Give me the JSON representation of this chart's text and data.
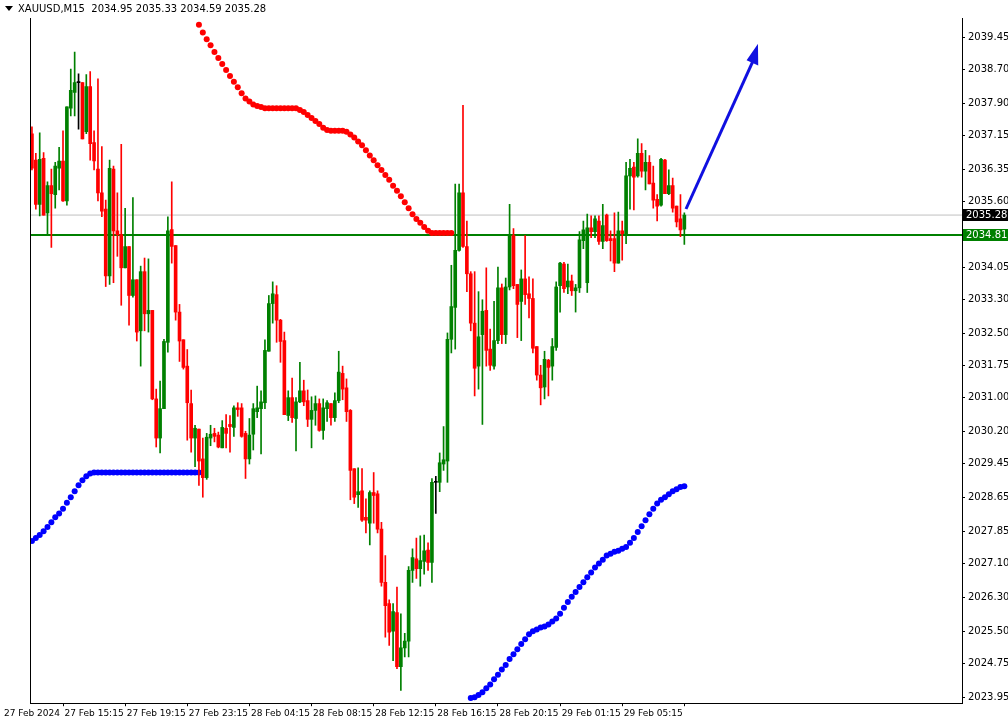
{
  "chart_data": {
    "type": "candlestick",
    "title": "XAUUSD,M15  2034.95 2035.33 2034.59 2035.28",
    "categories": [
      "27 Feb 2024",
      null,
      null,
      null,
      null,
      null,
      null,
      null,
      null,
      null,
      null,
      null,
      null,
      null,
      null,
      null,
      "27 Feb 15:15",
      null,
      null,
      null,
      null,
      null,
      null,
      null,
      null,
      null,
      null,
      null,
      null,
      null,
      null,
      null,
      "27 Feb 19:15",
      null,
      null,
      null,
      null,
      null,
      null,
      null,
      null,
      null,
      null,
      null,
      null,
      null,
      null,
      null,
      "27 Feb 23:15",
      null,
      null,
      null,
      null,
      null,
      null,
      null,
      null,
      null,
      null,
      null,
      null,
      null,
      null,
      null,
      "28 Feb 04:15",
      null,
      null,
      null,
      null,
      null,
      null,
      null,
      null,
      null,
      null,
      null,
      null,
      null,
      null,
      null,
      "28 Feb 08:15",
      null,
      null,
      null,
      null,
      null,
      null,
      null,
      null,
      null,
      null,
      null,
      null,
      null,
      null,
      null,
      "28 Feb 12:15",
      null,
      null,
      null,
      null,
      null,
      null,
      null,
      null,
      null,
      null,
      null,
      null,
      null,
      null,
      null,
      "28 Feb 16:15",
      null,
      null,
      null,
      null,
      null,
      null,
      null,
      null,
      null,
      null,
      null,
      null,
      null,
      null,
      null,
      "28 Feb 20:15",
      null,
      null,
      null,
      null,
      null,
      null,
      null,
      null,
      null,
      null,
      null,
      null,
      null,
      null,
      null,
      "29 Feb 01:15",
      null,
      null,
      null,
      null,
      null,
      null,
      null,
      null,
      null,
      null,
      null,
      null,
      null,
      null,
      null,
      "29 Feb 05:15",
      null,
      null,
      null,
      null,
      null,
      null,
      null,
      null,
      null,
      null,
      null,
      null,
      null,
      null,
      null,
      null,
      null,
      null,
      null,
      null,
      null,
      null,
      null,
      null,
      null,
      null,
      null,
      null,
      null,
      null,
      null,
      null,
      null,
      null,
      null,
      null,
      null,
      null,
      null,
      null,
      null,
      null,
      null,
      null,
      null,
      null,
      null,
      null,
      null,
      null,
      null,
      null,
      null,
      null,
      null,
      null,
      null,
      null,
      null,
      null,
      null,
      null,
      null,
      null,
      null,
      null,
      null,
      null,
      null,
      null,
      null,
      null,
      null,
      null,
      null,
      null,
      null,
      null,
      null
    ],
    "ohlc": [
      [
        2037.19,
        2037.35,
        2036.34,
        2036.38
      ],
      [
        2036.57,
        2036.73,
        2035.42,
        2035.53
      ],
      [
        2035.53,
        2037.21,
        2035.26,
        2036.59
      ],
      [
        2036.61,
        2036.75,
        2035.28,
        2035.28
      ],
      [
        2035.33,
        2036.06,
        2034.8,
        2035.97
      ],
      [
        2035.97,
        2036.36,
        2034.52,
        2035.78
      ],
      [
        2035.76,
        2036.52,
        2035.44,
        2036.43
      ],
      [
        2036.38,
        2036.87,
        2035.87,
        2036.55
      ],
      [
        2036.55,
        2037.26,
        2035.6,
        2035.61
      ],
      [
        2035.61,
        2037.82,
        2035.51,
        2037.82
      ],
      [
        2037.79,
        2038.71,
        2037.61,
        2038.21
      ],
      [
        2038.16,
        2039.11,
        2037.61,
        2038.39
      ],
      [
        2038.39,
        2038.6,
        2037.3,
        2038.39
      ],
      [
        2038.39,
        2038.39,
        2037.07,
        2037.07
      ],
      [
        2037.24,
        2038.58,
        2037.19,
        2038.3
      ],
      [
        2038.3,
        2038.65,
        2036.57,
        2036.96
      ],
      [
        2036.98,
        2037.26,
        2036.34,
        2036.55
      ],
      [
        2036.36,
        2038.48,
        2035.61,
        2035.8
      ],
      [
        2035.8,
        2036.89,
        2035.24,
        2035.37
      ],
      [
        2035.42,
        2035.63,
        2033.6,
        2033.85
      ],
      [
        2033.85,
        2036.57,
        2033.65,
        2036.38
      ],
      [
        2036.36,
        2036.43,
        2033.69,
        2034.91
      ],
      [
        2034.91,
        2035.8,
        2034.31,
        2034.82
      ],
      [
        2034.82,
        2036.94,
        2033.16,
        2034.04
      ],
      [
        2034.04,
        2035.44,
        2034.04,
        2034.54
      ],
      [
        2034.54,
        2034.54,
        2032.69,
        2033.39
      ],
      [
        2033.39,
        2035.69,
        2033.35,
        2033.76
      ],
      [
        2033.76,
        2033.76,
        2032.32,
        2032.53
      ],
      [
        2032.56,
        2034.08,
        2031.73,
        2033.95
      ],
      [
        2033.95,
        2034.27,
        2032.56,
        2032.96
      ],
      [
        2032.96,
        2034.25,
        2032.53,
        2033.04
      ],
      [
        2033.04,
        2033.04,
        2030.94,
        2030.96
      ],
      [
        2030.96,
        2031.19,
        2029.83,
        2030.04
      ],
      [
        2030.04,
        2031.38,
        2029.69,
        2030.73
      ],
      [
        2030.73,
        2032.36,
        2030.73,
        2032.31
      ],
      [
        2032.29,
        2035.24,
        2032.06,
        2034.91
      ],
      [
        2034.94,
        2036.06,
        2034.15,
        2034.54
      ],
      [
        2034.56,
        2034.56,
        2032.81,
        2033.0
      ],
      [
        2033.0,
        2033.18,
        2031.84,
        2032.32
      ],
      [
        2032.35,
        2032.35,
        2031.66,
        2031.7
      ],
      [
        2031.73,
        2032.12,
        2029.99,
        2030.87
      ],
      [
        2030.85,
        2031.17,
        2029.71,
        2030.04
      ],
      [
        2030.04,
        2030.34,
        2029.37,
        2030.27
      ],
      [
        2030.25,
        2030.25,
        2028.93,
        2029.5
      ],
      [
        2029.55,
        2030.04,
        2028.65,
        2029.11
      ],
      [
        2029.11,
        2030.15,
        2029.07,
        2030.06
      ],
      [
        2030.04,
        2030.34,
        2029.86,
        2030.13
      ],
      [
        2030.15,
        2030.27,
        2029.95,
        2030.08
      ],
      [
        2030.11,
        2030.18,
        2029.81,
        2029.83
      ],
      [
        2029.81,
        2030.45,
        2029.81,
        2030.29
      ],
      [
        2030.27,
        2030.59,
        2029.81,
        2030.15
      ],
      [
        2030.36,
        2030.57,
        2029.71,
        2030.31
      ],
      [
        2030.29,
        2030.8,
        2030.08,
        2030.75
      ],
      [
        2030.75,
        2030.87,
        2030.55,
        2030.71
      ],
      [
        2030.75,
        2030.85,
        2030.06,
        2030.08
      ],
      [
        2030.15,
        2030.2,
        2029.09,
        2029.55
      ],
      [
        2029.55,
        2030.5,
        2029.43,
        2030.11
      ],
      [
        2030.13,
        2030.85,
        2029.76,
        2030.73
      ],
      [
        2030.66,
        2031.26,
        2030.52,
        2030.75
      ],
      [
        2030.73,
        2031.15,
        2029.67,
        2030.89
      ],
      [
        2030.87,
        2032.35,
        2030.73,
        2032.1
      ],
      [
        2032.08,
        2033.39,
        2032.08,
        2033.2
      ],
      [
        2033.2,
        2033.71,
        2032.74,
        2033.43
      ],
      [
        2033.41,
        2033.62,
        2032.29,
        2032.81
      ],
      [
        2032.81,
        2032.83,
        2031.82,
        2032.31
      ],
      [
        2032.33,
        2032.53,
        2030.59,
        2030.59
      ],
      [
        2030.57,
        2031.15,
        2030.45,
        2030.99
      ],
      [
        2030.99,
        2031.45,
        2030.41,
        2030.52
      ],
      [
        2030.5,
        2030.99,
        2029.74,
        2030.89
      ],
      [
        2030.89,
        2031.82,
        2030.87,
        2031.15
      ],
      [
        2031.15,
        2031.4,
        2030.8,
        2030.89
      ],
      [
        2030.92,
        2031.17,
        2030.31,
        2030.48
      ],
      [
        2030.48,
        2031.01,
        2029.81,
        2030.69
      ],
      [
        2030.69,
        2031.03,
        2030.34,
        2030.85
      ],
      [
        2030.85,
        2030.96,
        2030.2,
        2030.22
      ],
      [
        2030.22,
        2030.96,
        2030.01,
        2030.75
      ],
      [
        2030.73,
        2030.92,
        2030.43,
        2030.87
      ],
      [
        2030.85,
        2030.85,
        2030.34,
        2030.52
      ],
      [
        2030.52,
        2031.1,
        2030.43,
        2030.92
      ],
      [
        2030.92,
        2032.08,
        2030.87,
        2031.59
      ],
      [
        2031.56,
        2031.73,
        2030.94,
        2031.19
      ],
      [
        2031.22,
        2031.43,
        2030.43,
        2030.66
      ],
      [
        2030.69,
        2030.71,
        2028.59,
        2029.28
      ],
      [
        2029.32,
        2029.32,
        2028.5,
        2028.65
      ],
      [
        2028.71,
        2029.34,
        2028.41,
        2028.78
      ],
      [
        2028.8,
        2029.32,
        2028.08,
        2028.11
      ],
      [
        2028.18,
        2028.61,
        2027.81,
        2028.11
      ],
      [
        2028.04,
        2028.8,
        2027.53,
        2028.76
      ],
      [
        2028.76,
        2029.23,
        2028.04,
        2028.69
      ],
      [
        2028.73,
        2028.8,
        2027.81,
        2027.9
      ],
      [
        2027.9,
        2028.06,
        2026.56,
        2026.65
      ],
      [
        2026.65,
        2027.28,
        2025.36,
        2026.1
      ],
      [
        2026.15,
        2026.24,
        2025.17,
        2025.48
      ],
      [
        2025.5,
        2026.15,
        2024.81,
        2025.96
      ],
      [
        2025.94,
        2026.54,
        2024.62,
        2024.67
      ],
      [
        2024.67,
        2025.91,
        2024.11,
        2025.11
      ],
      [
        2025.11,
        2025.45,
        2024.9,
        2025.27
      ],
      [
        2025.27,
        2027.02,
        2024.9,
        2026.93
      ],
      [
        2026.93,
        2027.44,
        2026.65,
        2027.23
      ],
      [
        2027.2,
        2027.69,
        2026.74,
        2026.97
      ],
      [
        2026.97,
        2027.74,
        2026.56,
        2027.16
      ],
      [
        2027.14,
        2027.76,
        2026.84,
        2027.39
      ],
      [
        2027.41,
        2027.58,
        2026.93,
        2027.12
      ],
      [
        2027.12,
        2029.09,
        2026.65,
        2029.0
      ],
      [
        2029.0,
        2029.14,
        2028.27,
        2029.0
      ],
      [
        2029.0,
        2029.69,
        2028.78,
        2029.46
      ],
      [
        2029.43,
        2030.31,
        2029.28,
        2029.53
      ],
      [
        2029.5,
        2032.51,
        2029.0,
        2032.36
      ],
      [
        2032.36,
        2034.1,
        2032.04,
        2033.13
      ],
      [
        2033.11,
        2036.01,
        2032.13,
        2034.45
      ],
      [
        2034.45,
        2036.01,
        2034.43,
        2035.8
      ],
      [
        2035.8,
        2037.86,
        2034.52,
        2034.54
      ],
      [
        2034.54,
        2035.14,
        2033.48,
        2033.9
      ],
      [
        2033.9,
        2033.95,
        2032.56,
        2032.74
      ],
      [
        2032.74,
        2033.95,
        2031.03,
        2031.68
      ],
      [
        2031.73,
        2033.48,
        2031.19,
        2032.42
      ],
      [
        2032.47,
        2033.29,
        2030.36,
        2033.02
      ],
      [
        2033.04,
        2034.04,
        2031.73,
        2032.1
      ],
      [
        2032.13,
        2032.6,
        2031.63,
        2031.75
      ],
      [
        2031.73,
        2033.25,
        2031.66,
        2032.33
      ],
      [
        2032.33,
        2034.06,
        2032.26,
        2033.57
      ],
      [
        2033.57,
        2033.66,
        2032.26,
        2032.47
      ],
      [
        2032.47,
        2033.8,
        2032.26,
        2033.59
      ],
      [
        2033.59,
        2035.53,
        2033.52,
        2034.8
      ],
      [
        2034.8,
        2034.96,
        2033.55,
        2033.62
      ],
      [
        2033.65,
        2033.65,
        2032.4,
        2033.18
      ],
      [
        2033.25,
        2033.99,
        2032.33,
        2033.78
      ],
      [
        2033.78,
        2034.8,
        2033.18,
        2033.41
      ],
      [
        2033.43,
        2033.83,
        2032.86,
        2033.32
      ],
      [
        2033.32,
        2033.78,
        2032.04,
        2032.15
      ],
      [
        2032.19,
        2032.19,
        2031.4,
        2031.52
      ],
      [
        2031.52,
        2031.75,
        2030.82,
        2031.22
      ],
      [
        2031.24,
        2032.08,
        2030.96,
        2031.89
      ],
      [
        2031.87,
        2031.89,
        2031.03,
        2031.7
      ],
      [
        2031.73,
        2032.38,
        2031.4,
        2032.19
      ],
      [
        2032.17,
        2033.71,
        2032.1,
        2033.59
      ],
      [
        2033.62,
        2034.17,
        2033.0,
        2034.15
      ],
      [
        2034.13,
        2034.17,
        2033.46,
        2033.55
      ],
      [
        2033.59,
        2034.13,
        2033.43,
        2033.73
      ],
      [
        2033.73,
        2033.87,
        2033.39,
        2033.5
      ],
      [
        2033.5,
        2033.65,
        2033.0,
        2033.57
      ],
      [
        2033.57,
        2034.89,
        2033.46,
        2034.7
      ],
      [
        2034.68,
        2035.14,
        2034.49,
        2034.93
      ],
      [
        2033.69,
        2035.3,
        2033.46,
        2034.98
      ],
      [
        2034.98,
        2035.26,
        2034.75,
        2034.89
      ],
      [
        2034.89,
        2035.26,
        2034.75,
        2035.19
      ],
      [
        2035.14,
        2035.26,
        2034.59,
        2034.66
      ],
      [
        2034.66,
        2035.53,
        2034.49,
        2035.03
      ],
      [
        2035.28,
        2035.3,
        2034.66,
        2034.68
      ],
      [
        2034.73,
        2034.91,
        2034.2,
        2034.68
      ],
      [
        2034.73,
        2035.33,
        2033.95,
        2034.15
      ],
      [
        2034.15,
        2035.35,
        2034.15,
        2034.91
      ],
      [
        2034.91,
        2035.14,
        2034.22,
        2034.84
      ],
      [
        2034.84,
        2036.52,
        2034.61,
        2036.2
      ],
      [
        2036.2,
        2036.59,
        2035.42,
        2036.38
      ],
      [
        2036.41,
        2036.52,
        2035.4,
        2036.17
      ],
      [
        2036.2,
        2037.07,
        2036.17,
        2036.73
      ],
      [
        2036.73,
        2036.96,
        2036.17,
        2036.31
      ],
      [
        2036.31,
        2036.8,
        2035.87,
        2036.52
      ],
      [
        2036.52,
        2036.68,
        2036.01,
        2036.01
      ],
      [
        2036.03,
        2036.43,
        2035.44,
        2035.63
      ],
      [
        2035.65,
        2035.76,
        2035.14,
        2035.49
      ],
      [
        2035.51,
        2036.61,
        2035.49,
        2036.59
      ],
      [
        2036.57,
        2036.59,
        2035.78,
        2035.78
      ],
      [
        2035.78,
        2036.34,
        2035.76,
        2035.97
      ],
      [
        2035.97,
        2036.15,
        2035.35,
        2035.44
      ],
      [
        2035.49,
        2035.49,
        2035.0,
        2035.12
      ],
      [
        2035.19,
        2035.76,
        2034.77,
        2034.93
      ],
      [
        2034.95,
        2035.33,
        2034.59,
        2035.28
      ],
      null,
      null,
      null,
      null,
      null,
      null,
      null,
      null,
      null,
      null,
      null,
      null,
      null,
      null,
      null,
      null,
      null,
      null,
      null,
      null,
      null,
      null,
      null,
      null,
      null,
      null,
      null,
      null,
      null,
      null,
      null,
      null,
      null,
      null,
      null,
      null,
      null,
      null,
      null,
      null,
      null,
      null,
      null,
      null,
      null,
      null,
      null,
      null,
      null,
      null,
      null,
      null,
      null,
      null,
      null,
      null,
      null,
      null,
      null,
      null,
      null,
      null,
      null,
      null,
      null,
      null,
      null,
      null,
      null,
      null,
      null
    ],
    "colors": [
      "#ff0000",
      "#ff0000",
      "#008000",
      "#ff0000",
      "#008000",
      "#ff0000",
      "#008000",
      "#008000",
      "#ff0000",
      "#008000",
      "#008000",
      "#008000",
      "#000000",
      "#ff0000",
      "#008000",
      "#ff0000",
      "#ff0000",
      "#ff0000",
      "#ff0000",
      "#ff0000",
      "#008000",
      "#ff0000",
      "#ff0000",
      "#ff0000",
      "#008000",
      "#ff0000",
      "#008000",
      "#ff0000",
      "#008000",
      "#ff0000",
      "#008000",
      "#ff0000",
      "#ff0000",
      "#008000",
      "#008000",
      "#008000",
      "#ff0000",
      "#ff0000",
      "#ff0000",
      "#ff0000",
      "#ff0000",
      "#ff0000",
      "#008000",
      "#ff0000",
      "#ff0000",
      "#008000",
      "#008000",
      "#ff0000",
      "#ff0000",
      "#008000",
      "#ff0000",
      "#ff0000",
      "#008000",
      "#ff0000",
      "#ff0000",
      "#ff0000",
      "#008000",
      "#008000",
      "#008000",
      "#008000",
      "#008000",
      "#008000",
      "#008000",
      "#ff0000",
      "#ff0000",
      "#ff0000",
      "#008000",
      "#ff0000",
      "#008000",
      "#008000",
      "#ff0000",
      "#ff0000",
      "#008000",
      "#008000",
      "#ff0000",
      "#008000",
      "#008000",
      "#ff0000",
      "#008000",
      "#008000",
      "#ff0000",
      "#ff0000",
      "#ff0000",
      "#ff0000",
      "#008000",
      "#ff0000",
      "#ff0000",
      "#008000",
      "#ff0000",
      "#ff0000",
      "#ff0000",
      "#ff0000",
      "#ff0000",
      "#008000",
      "#ff0000",
      "#008000",
      "#008000",
      "#008000",
      "#008000",
      "#ff0000",
      "#008000",
      "#008000",
      "#ff0000",
      "#008000",
      "#000000",
      "#008000",
      "#008000",
      "#008000",
      "#008000",
      "#008000",
      "#008000",
      "#ff0000",
      "#ff0000",
      "#ff0000",
      "#ff0000",
      "#008000",
      "#008000",
      "#ff0000",
      "#ff0000",
      "#008000",
      "#008000",
      "#ff0000",
      "#008000",
      "#008000",
      "#ff0000",
      "#ff0000",
      "#008000",
      "#ff0000",
      "#ff0000",
      "#ff0000",
      "#ff0000",
      "#ff0000",
      "#008000",
      "#ff0000",
      "#008000",
      "#008000",
      "#008000",
      "#ff0000",
      "#008000",
      "#ff0000",
      "#008000",
      "#008000",
      "#008000",
      "#008000",
      "#ff0000",
      "#008000",
      "#ff0000",
      "#008000",
      "#ff0000",
      "#ff0000",
      "#ff0000",
      "#008000",
      "#ff0000",
      "#008000",
      "#008000",
      "#ff0000",
      "#008000",
      "#ff0000",
      "#008000",
      "#ff0000",
      "#ff0000",
      "#ff0000",
      "#008000",
      "#ff0000",
      "#008000",
      "#ff0000",
      "#ff0000",
      "#ff0000",
      "#008000",
      null,
      null,
      null,
      null,
      null,
      null,
      null,
      null,
      null,
      null,
      null,
      null,
      null,
      null,
      null,
      null,
      null,
      null,
      null,
      null,
      null,
      null,
      null,
      null,
      null,
      null,
      null,
      null,
      null,
      null,
      null,
      null,
      null,
      null,
      null,
      null,
      null,
      null,
      null,
      null,
      null,
      null,
      null,
      null,
      null,
      null,
      null,
      null,
      null,
      null,
      null,
      null,
      null,
      null,
      null,
      null,
      null,
      null,
      null,
      null,
      null,
      null,
      null,
      null,
      null,
      null,
      null,
      null,
      null,
      null,
      null
    ],
    "series": [
      {
        "type": "scatter",
        "color": "#ff0000",
        "values": [
          null,
          null,
          null,
          null,
          null,
          null,
          null,
          null,
          null,
          null,
          null,
          null,
          null,
          null,
          null,
          null,
          null,
          null,
          null,
          null,
          null,
          null,
          null,
          null,
          null,
          null,
          null,
          null,
          null,
          null,
          null,
          null,
          null,
          null,
          null,
          null,
          null,
          null,
          null,
          null,
          null,
          null,
          null,
          2039.75,
          2039.57,
          2039.41,
          2039.27,
          2039.11,
          2038.97,
          2038.83,
          2038.69,
          2038.55,
          2038.41,
          2038.28,
          2038.14,
          2038.02,
          2037.95,
          2037.88,
          2037.84,
          2037.82,
          2037.79,
          2037.79,
          2037.79,
          2037.79,
          2037.79,
          2037.79,
          2037.79,
          2037.79,
          2037.79,
          2037.75,
          2037.7,
          2037.63,
          2037.56,
          2037.49,
          2037.42,
          2037.33,
          2037.28,
          2037.26,
          2037.26,
          2037.26,
          2037.26,
          2037.24,
          2037.17,
          2037.1,
          2037.01,
          2036.92,
          2036.8,
          2036.68,
          2036.57,
          2036.45,
          2036.34,
          2036.22,
          2036.11,
          2035.97,
          2035.85,
          2035.72,
          2035.58,
          2035.44,
          2035.3,
          2035.19,
          2035.1,
          2035.0,
          2034.91,
          2034.86,
          2034.86,
          2034.86,
          2034.86,
          2034.86,
          2034.86,
          null,
          null,
          null,
          null,
          null,
          null,
          null,
          null,
          null,
          null,
          null,
          null,
          null,
          null,
          null,
          null,
          null,
          null,
          null,
          null,
          null,
          null,
          null,
          null,
          null,
          null,
          null,
          null,
          null,
          null,
          null,
          null,
          null,
          null,
          null,
          null,
          null,
          null,
          null,
          null,
          null,
          null,
          null,
          null,
          null,
          null,
          null,
          null,
          null,
          null,
          null,
          null,
          null,
          null,
          null,
          null,
          null,
          null,
          null,
          null,
          null,
          null,
          null,
          null,
          null,
          null,
          null,
          null,
          null,
          null,
          null,
          null,
          null,
          null,
          null,
          null,
          null,
          null,
          null,
          null,
          null,
          null,
          null,
          null,
          null,
          null,
          null,
          null,
          null,
          null,
          null,
          null,
          null,
          null,
          null,
          null,
          null,
          null,
          null,
          null,
          null,
          null,
          null,
          null,
          null,
          null,
          null,
          null,
          null,
          null,
          null,
          null,
          null,
          null,
          null,
          null,
          null,
          null,
          null,
          null,
          null,
          null,
          null,
          null,
          null,
          null,
          null,
          null,
          null,
          null,
          null
        ]
      },
      {
        "type": "scatter",
        "color": "#0000ff",
        "values": [
          2027.62,
          2027.69,
          2027.76,
          2027.85,
          2027.95,
          2028.06,
          2028.18,
          2028.27,
          2028.38,
          2028.52,
          2028.65,
          2028.79,
          2028.93,
          2029.05,
          2029.14,
          2029.21,
          2029.23,
          2029.23,
          2029.23,
          2029.23,
          2029.23,
          2029.23,
          2029.23,
          2029.23,
          2029.23,
          2029.23,
          2029.23,
          2029.23,
          2029.23,
          2029.23,
          2029.23,
          2029.23,
          2029.23,
          2029.23,
          2029.23,
          2029.23,
          2029.23,
          2029.23,
          2029.23,
          2029.23,
          2029.23,
          2029.23,
          2029.23,
          2029.23,
          null,
          null,
          null,
          null,
          null,
          null,
          null,
          null,
          null,
          null,
          null,
          null,
          null,
          null,
          null,
          null,
          null,
          null,
          null,
          null,
          null,
          null,
          null,
          null,
          null,
          null,
          null,
          null,
          null,
          null,
          null,
          null,
          null,
          null,
          null,
          null,
          null,
          null,
          null,
          null,
          null,
          null,
          null,
          null,
          null,
          null,
          null,
          null,
          null,
          null,
          null,
          null,
          null,
          null,
          null,
          null,
          null,
          null,
          null,
          null,
          null,
          null,
          null,
          null,
          null,
          null,
          null,
          null,
          null,
          2023.93,
          2023.95,
          2024.0,
          2024.07,
          2024.16,
          2024.25,
          2024.37,
          2024.48,
          2024.6,
          2024.71,
          2024.85,
          2024.96,
          2025.08,
          2025.2,
          2025.31,
          2025.43,
          2025.5,
          2025.54,
          2025.59,
          2025.61,
          2025.66,
          2025.73,
          2025.8,
          2025.91,
          2026.05,
          2026.19,
          2026.31,
          2026.42,
          2026.54,
          2026.65,
          2026.77,
          2026.88,
          2027.0,
          2027.09,
          2027.18,
          2027.28,
          2027.32,
          2027.37,
          2027.39,
          2027.44,
          2027.48,
          2027.58,
          2027.69,
          2027.83,
          2027.97,
          2028.11,
          2028.25,
          2028.38,
          2028.5,
          2028.59,
          2028.65,
          2028.72,
          2028.79,
          2028.84,
          2028.89,
          2028.91,
          null,
          null,
          null,
          null,
          null,
          null,
          null,
          null,
          null,
          null,
          null,
          null,
          null,
          null,
          null,
          null,
          null,
          null,
          null,
          null,
          null,
          null,
          null,
          null,
          null,
          null,
          null,
          null,
          null,
          null,
          null,
          null,
          null,
          null,
          null,
          null,
          null,
          null,
          null,
          null,
          null,
          null,
          null,
          null,
          null,
          null,
          null,
          null,
          null,
          null,
          null,
          null,
          null,
          null,
          null,
          null,
          null,
          null,
          null,
          null,
          null,
          null,
          null,
          null,
          null,
          null,
          null,
          null,
          null,
          null,
          null
        ]
      }
    ],
    "marker": "circle",
    "ylim": [
      2023.81,
      2039.91
    ],
    "yticks": [
      2023.95,
      2024.75,
      {
        "value": 2025.5,
        "label": "2025.50"
      },
      {
        "value": 2026.3,
        "label": "2026.30"
      },
      {
        "value": 2027.1,
        "label": "2027.10"
      },
      2027.85,
      2028.65,
      2029.45,
      {
        "value": 2030.2,
        "label": "2030.20"
      },
      {
        "value": 2031,
        "label": "2031.00"
      },
      2031.75,
      {
        "value": 2032.5,
        "label": "2032.50"
      },
      {
        "value": 2033.3,
        "label": "2033.30"
      },
      2034.05,
      {
        "value": 2035.6,
        "label": "2035.60"
      },
      2036.35,
      2037.15,
      {
        "value": 2037.9,
        "label": "2037.90"
      },
      {
        "value": 2038.7,
        "label": "2038.70"
      },
      2039.45
    ],
    "ref_lines": [
      {
        "axis": "y",
        "value": 2034.81,
        "label": "2034.81",
        "color": "#008000"
      },
      {
        "axis": "y",
        "value": 2035.28,
        "label": "2035.28",
        "color": "#c0c0c0"
      }
    ]
  }
}
